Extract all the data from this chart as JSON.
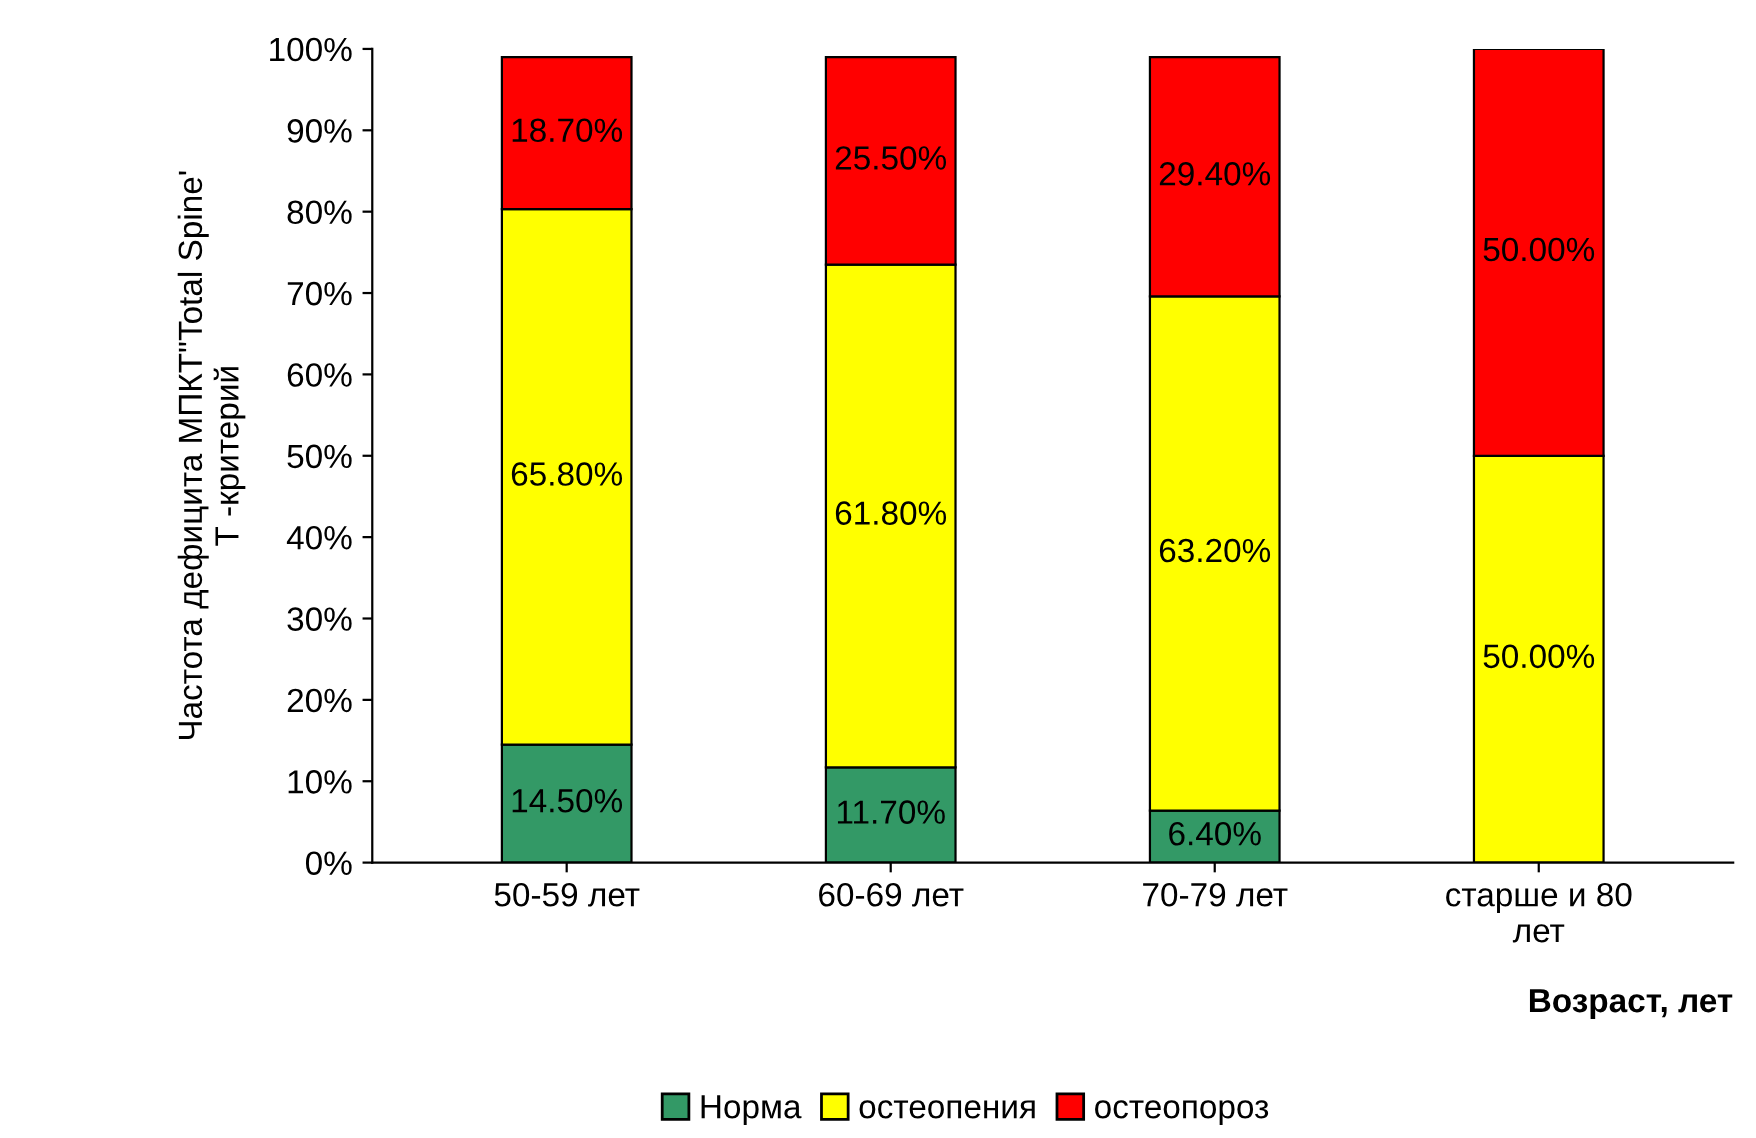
{
  "chart_data": {
    "type": "bar",
    "stacked": true,
    "ylabel": "Частота дефицита МПКТ\"Total Spine'\nТ -критерий",
    "xlabel": "Возраст, лет",
    "categories": [
      "50-59 лет",
      "60-69 лет",
      "70-79 лет",
      "старше и 80\nлет"
    ],
    "series": [
      {
        "name": "Норма",
        "color": "#339966",
        "values": [
          14.5,
          11.7,
          6.4,
          null
        ],
        "value_labels": [
          "14.50%",
          "11.70%",
          "6.40%",
          null
        ]
      },
      {
        "name": "остеопения",
        "color": "#ffff00",
        "values": [
          65.8,
          61.8,
          63.2,
          50.0
        ],
        "value_labels": [
          "65.80%",
          "61.80%",
          "63.20%",
          "50.00%"
        ]
      },
      {
        "name": "остеопороз",
        "color": "#ff0000",
        "values": [
          18.7,
          25.5,
          29.4,
          50.0
        ],
        "value_labels": [
          "18.70%",
          "25.50%",
          "29.40%",
          "50.00%"
        ]
      }
    ],
    "ylim": [
      0,
      100
    ],
    "yticks": [
      {
        "value": 0,
        "label": "0%"
      },
      {
        "value": 10,
        "label": "10%"
      },
      {
        "value": 20,
        "label": "20%"
      },
      {
        "value": 30,
        "label": "30%"
      },
      {
        "value": 40,
        "label": "40%"
      },
      {
        "value": 50,
        "label": "50%"
      },
      {
        "value": 60,
        "label": "60%"
      },
      {
        "value": 70,
        "label": "70%"
      },
      {
        "value": 80,
        "label": "80%"
      },
      {
        "value": 90,
        "label": "90%"
      },
      {
        "value": 100,
        "label": "100%"
      }
    ],
    "grid": false,
    "legend": "bottom"
  }
}
